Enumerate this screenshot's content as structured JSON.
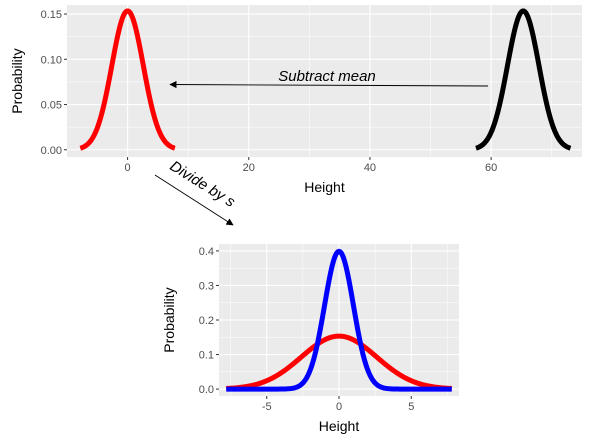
{
  "chart_data": [
    {
      "type": "line",
      "xlabel": "Height",
      "ylabel": "Probability",
      "xlim": [
        -10,
        75
      ],
      "ylim": [
        -0.008,
        0.16
      ],
      "x_ticks": [
        0,
        20,
        40,
        60
      ],
      "x_tick_labels": [
        "0",
        "20",
        "40",
        "60"
      ],
      "y_ticks": [
        0.0,
        0.05,
        0.1,
        0.15
      ],
      "y_tick_labels": [
        "0.00",
        "0.05",
        "0.10",
        "0.15"
      ],
      "grid": true,
      "series": [
        {
          "color": "#ff0000",
          "distribution": "normal",
          "mean": 0,
          "sd": 2.6,
          "x_range": [
            -7.8,
            7.8
          ]
        },
        {
          "color": "#000000",
          "distribution": "normal",
          "mean": 65.3,
          "sd": 2.6,
          "x_range": [
            57.5,
            73.1
          ]
        }
      ],
      "annotation": "Subtract mean"
    },
    {
      "type": "line",
      "xlabel": "Height",
      "ylabel": "Probability",
      "xlim": [
        -8.3,
        8.3
      ],
      "ylim": [
        -0.02,
        0.42
      ],
      "x_ticks": [
        -5,
        0,
        5
      ],
      "x_tick_labels": [
        "-5",
        "0",
        "5"
      ],
      "y_ticks": [
        0.0,
        0.1,
        0.2,
        0.3,
        0.4
      ],
      "y_tick_labels": [
        "0.0",
        "0.1",
        "0.2",
        "0.3",
        "0.4"
      ],
      "grid": true,
      "series": [
        {
          "color": "#ff0000",
          "distribution": "normal",
          "mean": 0,
          "sd": 2.6,
          "x_range": [
            -7.8,
            7.8
          ]
        },
        {
          "color": "#0000ff",
          "distribution": "normal",
          "mean": 0,
          "sd": 1.0,
          "x_range": [
            -7.8,
            7.8
          ]
        }
      ]
    }
  ],
  "arrow_annotation": "Divide by s",
  "colors": {
    "panel": "#ebebeb",
    "grid": "#ffffff",
    "red": "#ff0000",
    "black": "#000000",
    "blue": "#0000ff"
  }
}
